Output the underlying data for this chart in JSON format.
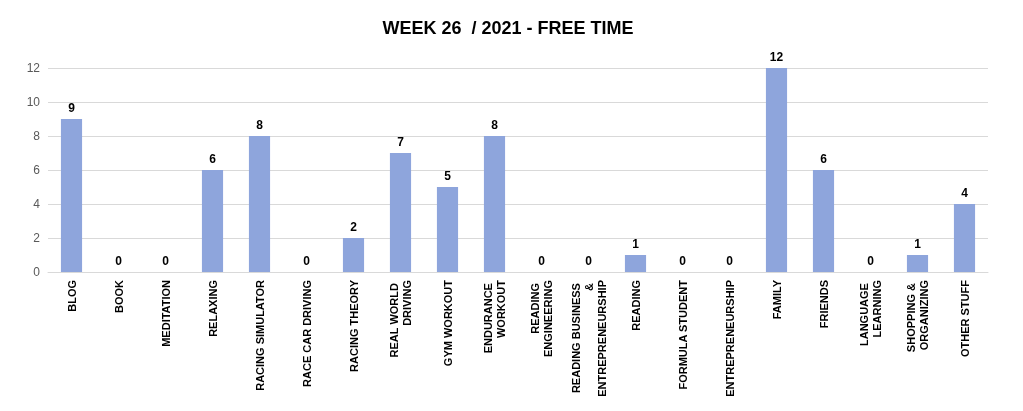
{
  "chart_data": {
    "type": "bar",
    "title": "WEEK 26  / 2021 - FREE TIME",
    "categories": [
      "BLOG",
      "BOOK",
      "MEDITATION",
      "RELAXING",
      "RACING SIMULATOR",
      "RACE CAR DRIVING",
      "RACING THEORY",
      "REAL WORLD DRIVING",
      "GYM WORKOUT",
      "ENDURANCE WORKOUT",
      "READING ENGINEERING",
      "READING BUSINESS & ENTREPRENEURSHIP",
      "READING",
      "FORMULA STUDENT",
      "ENTREPRENEURSHIP",
      "FAMILY",
      "FRIENDS",
      "LANGUAGE LEARNING",
      "SHOPPING & ORGANIZING",
      "OTHER STUFF"
    ],
    "values": [
      9,
      0,
      0,
      6,
      8,
      0,
      2,
      7,
      5,
      8,
      0,
      0,
      1,
      0,
      0,
      12,
      6,
      0,
      1,
      4
    ],
    "color": "#8ea5dc",
    "ylim": [
      0,
      12
    ],
    "yticks": [
      0,
      2,
      4,
      6,
      8,
      10,
      12
    ],
    "grid": "y",
    "data_labels": true
  }
}
